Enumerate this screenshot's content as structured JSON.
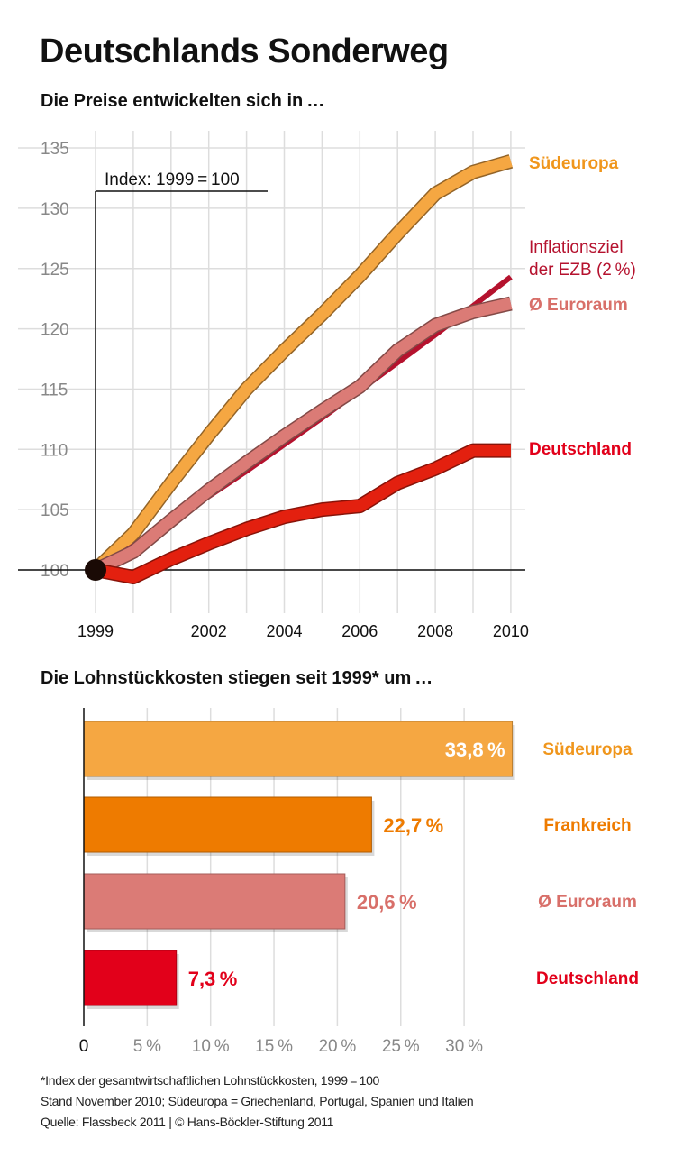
{
  "title": "Deutschlands Sonderweg",
  "colors": {
    "suedeuropa": "#f5a742",
    "frankreich": "#ee7b00",
    "euroraum": "#db7b76",
    "deutschland": "#e2001a",
    "inflationsziel": "#b5122e",
    "grid": "#dddddd"
  },
  "chart_data": [
    {
      "type": "line",
      "title": "Die Preise entwickelten sich in …",
      "annotation": "Index: 1999 = 100",
      "x": [
        1999,
        2000,
        2001,
        2002,
        2003,
        2004,
        2005,
        2006,
        2007,
        2008,
        2009,
        2010
      ],
      "x_tick_labels": [
        "1999",
        "2002",
        "2004",
        "2006",
        "2008",
        "2010"
      ],
      "y_tick_labels": [
        "100",
        "105",
        "110",
        "115",
        "120",
        "125",
        "130",
        "135"
      ],
      "ylim": [
        100,
        135
      ],
      "grid": true,
      "series": [
        {
          "name": "Südeuropa",
          "key": "suedeuropa",
          "values": [
            100,
            103.0,
            107.2,
            111.2,
            115.0,
            118.2,
            121.2,
            124.4,
            127.9,
            131.2,
            133.0,
            133.9
          ]
        },
        {
          "name": "Inflationsziel der EZB (2 %)",
          "name_lines": [
            "Inflationsziel",
            "der EZB (2 %)"
          ],
          "key": "inflationsziel",
          "values": [
            100,
            102.0,
            104.0,
            106.1,
            108.2,
            110.4,
            112.6,
            114.9,
            117.2,
            119.5,
            121.9,
            124.3
          ]
        },
        {
          "name": "Ø Euroraum",
          "key": "euroraum",
          "values": [
            100,
            101.5,
            104.1,
            106.6,
            108.9,
            111.1,
            113.2,
            115.2,
            118.2,
            120.3,
            121.4,
            122.1
          ]
        },
        {
          "name": "Deutschland",
          "key": "deutschland",
          "values": [
            100,
            99.4,
            100.9,
            102.2,
            103.4,
            104.4,
            105.0,
            105.3,
            107.2,
            108.4,
            109.9,
            109.9
          ]
        }
      ]
    },
    {
      "type": "bar",
      "orientation": "horizontal",
      "title": "Die Lohnstückkosten stiegen seit 1999* um …",
      "categories": [
        "Südeuropa",
        "Frankreich",
        "Ø Euroraum",
        "Deutschland"
      ],
      "keys": [
        "suedeuropa",
        "frankreich",
        "euroraum",
        "deutschland"
      ],
      "values": [
        33.8,
        22.7,
        20.6,
        7.3
      ],
      "value_labels": [
        "33,8 %",
        "22,7 %",
        "20,6 %",
        "7,3 %"
      ],
      "x_tick_labels": [
        "0",
        "5 %",
        "10 %",
        "15 %",
        "20 %",
        "25 %",
        "30 %"
      ],
      "xlim": [
        0,
        30
      ],
      "grid": true
    }
  ],
  "footer": [
    "*Index der gesamtwirtschaftlichen Lohnstückkosten, 1999 = 100",
    "Stand November 2010; Südeuropa = Griechenland, Portugal, Spanien und Italien",
    "Quelle: Flassbeck 2011 | © Hans-Böckler-Stiftung 2011"
  ]
}
